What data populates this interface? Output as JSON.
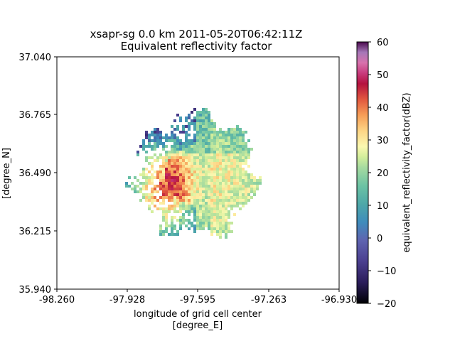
{
  "chart_data": {
    "type": "heatmap",
    "title": "xsapr-sg 0.0 km 2011-05-20T06:42:11Z",
    "subtitle": "Equivalent reflectivity factor",
    "xlabel_line1": "longitude of grid cell center",
    "xlabel_line2": "[degree_E]",
    "ylabel": "[degree_N]",
    "xlim": [
      -98.26,
      -96.93
    ],
    "ylim": [
      35.94,
      37.04
    ],
    "x_ticks": [
      "-98.260",
      "-97.928",
      "-97.595",
      "-97.263",
      "-96.930"
    ],
    "y_ticks": [
      "35.940",
      "36.215",
      "36.490",
      "36.765",
      "37.040"
    ],
    "colorbar": {
      "label": "equivalent_reflectivity_factor(dBZ)",
      "colormap": "spectral",
      "range": [
        -20,
        60
      ],
      "ticks": [
        "60",
        "50",
        "40",
        "30",
        "20",
        "10",
        "0",
        "−10",
        "−20"
      ]
    },
    "echo_region": {
      "center_lon": -97.61,
      "center_lat": 36.48,
      "radius_deg_lat": 0.31,
      "max_reflectivity_dBZ": 45,
      "typical_reflectivity_dBZ": [
        10,
        25
      ],
      "core_lon": -97.77,
      "core_lat": 36.42
    }
  }
}
